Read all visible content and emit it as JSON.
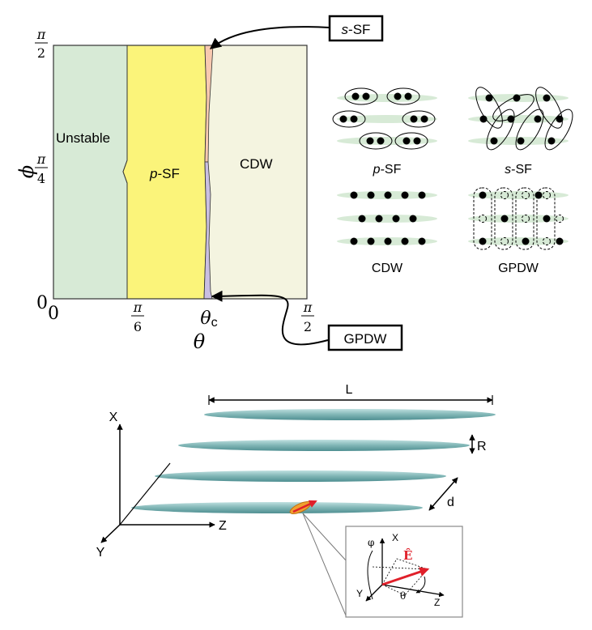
{
  "phase_diagram": {
    "y_axis": {
      "label": "ϕ",
      "ticks": [
        {
          "num": "π",
          "den": "2"
        },
        {
          "num": "π",
          "den": "4"
        },
        {
          "num": "0",
          "den": ""
        }
      ]
    },
    "x_axis": {
      "label": "θ",
      "ticks": [
        {
          "num": "0",
          "den": ""
        },
        {
          "num": "π",
          "den": "6"
        },
        {
          "num": "θ",
          "sub": "c",
          "den": ""
        },
        {
          "num": "π",
          "den": "2"
        }
      ]
    },
    "regions": [
      {
        "label": "Unstable",
        "color": "#d7ead6"
      },
      {
        "label_pre": "p",
        "label_post": "-SF",
        "color": "#fbf47a"
      },
      {
        "label": "CDW",
        "color": "#f4f4e0"
      }
    ],
    "thin_regions": [
      {
        "name": "s-SF",
        "color": "#f8c9b0"
      },
      {
        "name": "GPDW",
        "color": "#c9bfe2"
      }
    ],
    "callouts": {
      "ssf": {
        "pre": "s",
        "post": "-SF"
      },
      "gpdw": {
        "text": "GPDW"
      }
    }
  },
  "schematics": [
    {
      "pre": "p",
      "post": "-SF"
    },
    {
      "pre": "s",
      "post": "-SF"
    },
    {
      "pre": "",
      "post": "CDW"
    },
    {
      "pre": "",
      "post": "GPDW"
    }
  ],
  "geometry": {
    "length_label": "L",
    "radius_label": "R",
    "spacing_label": "d",
    "axes": {
      "x": "X",
      "y": "Y",
      "z": "Z"
    },
    "inset": {
      "phi": "φ",
      "x": "X",
      "y": "Y",
      "z": "Z",
      "theta": "θ",
      "field": "Ê"
    },
    "colors": {
      "tube": "#7fb5b5",
      "dipole": "#f0a030",
      "field": "#e0202a"
    }
  }
}
